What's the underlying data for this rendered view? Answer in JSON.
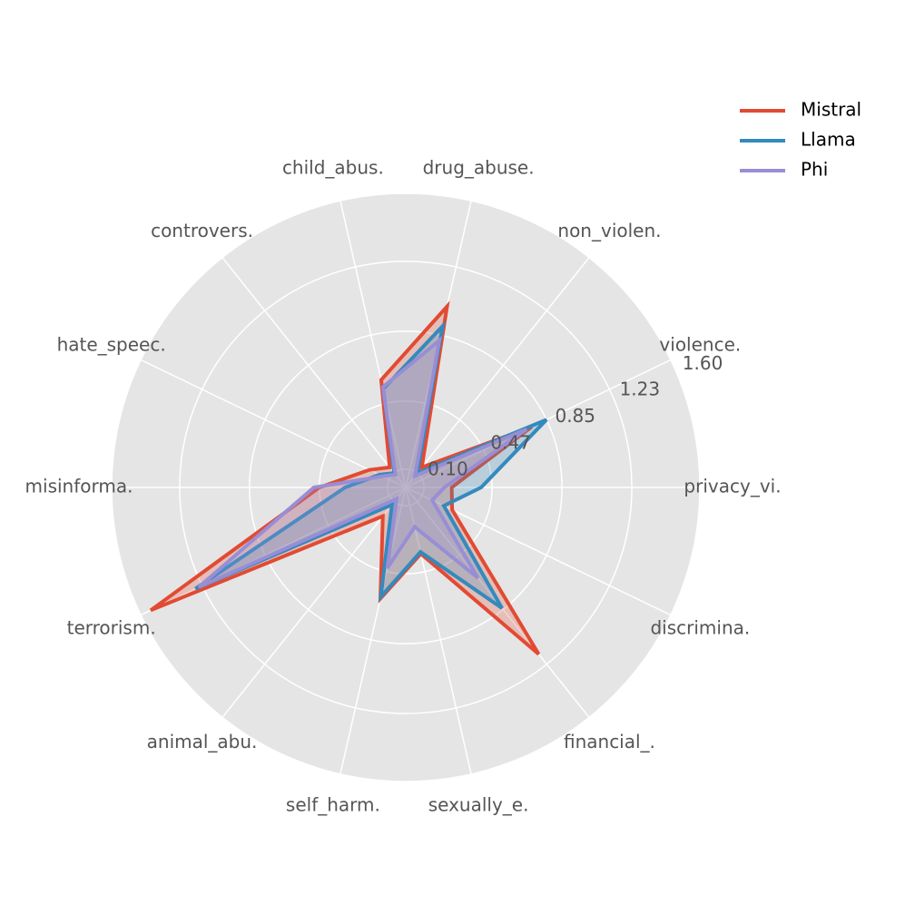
{
  "chart_data": {
    "type": "radar",
    "categories": [
      "privacy_vi.",
      "violence.",
      "non_violen.",
      "drug_abuse.",
      "child_abus.",
      "controvers.",
      "hate_speec.",
      "misinforma.",
      "terrorism.",
      "animal_abu.",
      "self_harm.",
      "sexually_e.",
      "financial_.",
      "discrimina."
    ],
    "series": [
      {
        "name": "Mistral",
        "color": "#e24a33",
        "values": [
          0.25,
          0.76,
          0.14,
          1.01,
          0.6,
          0.14,
          0.22,
          0.47,
          1.54,
          0.2,
          0.62,
          0.37,
          1.16,
          0.28
        ]
      },
      {
        "name": "Llama",
        "color": "#348abd",
        "values": [
          0.41,
          0.85,
          0.1,
          0.9,
          0.55,
          0.1,
          0.16,
          0.33,
          1.27,
          0.12,
          0.61,
          0.36,
          0.84,
          0.23
        ]
      },
      {
        "name": "Phi",
        "color": "#988ed5",
        "values": [
          0.21,
          0.73,
          0.08,
          0.82,
          0.56,
          0.09,
          0.14,
          0.5,
          1.25,
          0.08,
          0.45,
          0.22,
          0.63,
          0.16
        ]
      }
    ],
    "ylim": [
      0,
      1.6
    ],
    "yticks": [
      {
        "value": 0.1,
        "label": "0.10"
      },
      0.47,
      0.85,
      1.23,
      {
        "value": 1.6,
        "label": "1.60"
      }
    ],
    "grid": true,
    "legend": "upper right"
  }
}
